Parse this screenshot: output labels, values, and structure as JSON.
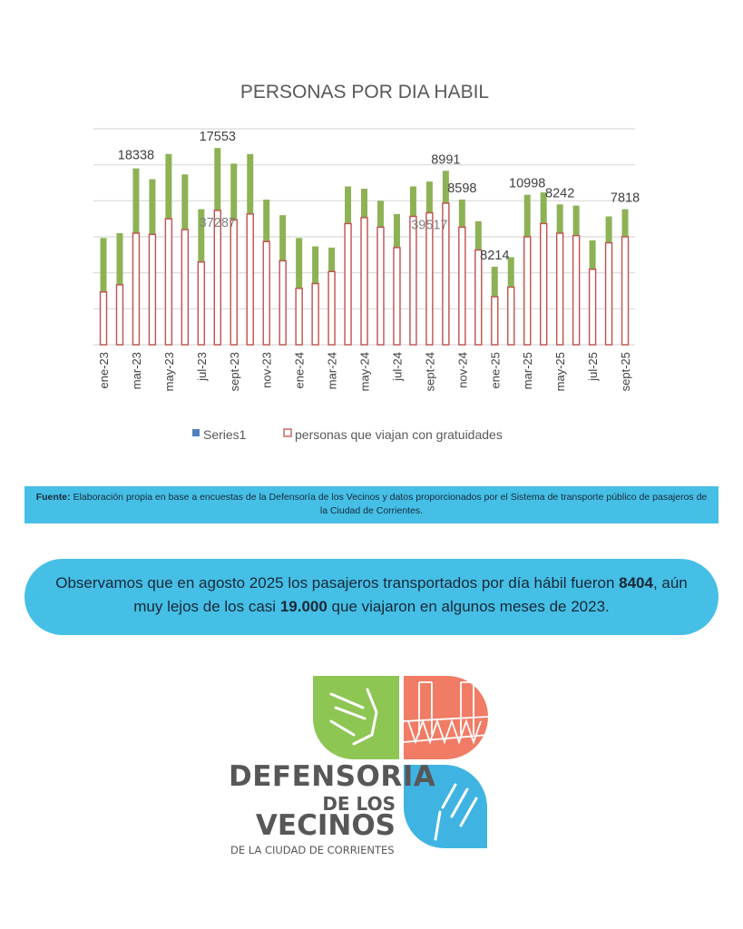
{
  "chart_data": {
    "type": "bar",
    "stacked": true,
    "title": "PERSONAS POR DIA HABIL",
    "xlabel": "",
    "ylabel": "",
    "ylim": [
      0,
      18000
    ],
    "gridlines": [
      0,
      3000,
      6000,
      9000,
      12000,
      15000,
      18000
    ],
    "grid": true,
    "legend_position": "bottom",
    "categories": [
      "ene-23",
      "feb-23",
      "mar-23",
      "abr-23",
      "may-23",
      "jun-23",
      "jul-23",
      "ago-23",
      "sept-23",
      "oct-23",
      "nov-23",
      "dic-23",
      "ene-24",
      "feb-24",
      "mar-24",
      "abr-24",
      "may-24",
      "jun-24",
      "jul-24",
      "ago-24",
      "sept-24",
      "oct-24",
      "nov-24",
      "dic-24",
      "ene-25",
      "feb-25",
      "mar-25",
      "abr-25",
      "may-25",
      "jun-25",
      "jul-25",
      "ago-25",
      "sept-25"
    ],
    "tick_labels_shown": [
      "ene-23",
      "mar-23",
      "may-23",
      "jul-23",
      "sept-23",
      "nov-23",
      "ene-24",
      "mar-24",
      "may-24",
      "jul-24",
      "sept-24",
      "nov-24",
      "ene-25",
      "mar-25",
      "may-25",
      "jul-25",
      "sept-25"
    ],
    "series": [
      {
        "name": "personas que viajan con gratuidades",
        "color": "#c0504d",
        "style": "outline",
        "values": [
          4400,
          5000,
          9300,
          9200,
          10500,
          9600,
          6900,
          11200,
          10400,
          10900,
          8600,
          7000,
          4700,
          5100,
          6100,
          10100,
          10600,
          9800,
          8100,
          10700,
          11000,
          11800,
          9800,
          7900,
          4000,
          4800,
          9000,
          10100,
          9300,
          9100,
          6300,
          8500,
          9000
        ]
      },
      {
        "name": "Series1",
        "color": "#8db255",
        "legend_color": "#4f81bd",
        "style": "fill",
        "values": [
          4500,
          4300,
          5400,
          4600,
          5400,
          4600,
          4400,
          5200,
          4700,
          5000,
          3500,
          3800,
          4200,
          3100,
          2000,
          3100,
          2400,
          2200,
          2800,
          2500,
          2600,
          2700,
          2300,
          2400,
          2500,
          2500,
          3500,
          2600,
          2400,
          2500,
          2400,
          2200,
          2300
        ]
      }
    ],
    "data_labels": [
      {
        "text": "18338",
        "category": "mar-23",
        "at": "top"
      },
      {
        "text": "17553",
        "category": "ago-23",
        "at": "top"
      },
      {
        "text": "37287",
        "category": "ago-23",
        "at": "inside"
      },
      {
        "text": "8991",
        "category": "oct-24",
        "at": "top"
      },
      {
        "text": "39517",
        "category": "sept-24",
        "at": "inside"
      },
      {
        "text": "8598",
        "category": "nov-24",
        "at": "top"
      },
      {
        "text": "8214",
        "category": "ene-25",
        "at": "top"
      },
      {
        "text": "10998",
        "category": "mar-25",
        "at": "top"
      },
      {
        "text": "8242",
        "category": "may-25",
        "at": "top"
      },
      {
        "text": "7818",
        "category": "sept-25",
        "at": "top"
      }
    ]
  },
  "legend": {
    "series1": "Series1",
    "series2": "personas que viajan con gratuidades"
  },
  "source": {
    "label": "Fuente:",
    "text": " Elaboración propia en base a encuestas de la Defensoría de los Vecinos y datos proporcionados por el Sistema de transporte público de pasajeros de la Ciudad de Corrientes."
  },
  "highlight": {
    "part1": "Observamos que en agosto 2025 los pasajeros transportados por día hábil fueron ",
    "value1": "8404",
    "part2": ", aún muy lejos de los casi ",
    "value2": "19.000",
    "part3": " que viajaron en algunos meses de 2023."
  },
  "logo": {
    "line1": "DEFENSORIA",
    "line2": "DE LOS",
    "line3": "VECINOS",
    "line4": "DE LA CIUDAD DE CORRIENTES"
  }
}
